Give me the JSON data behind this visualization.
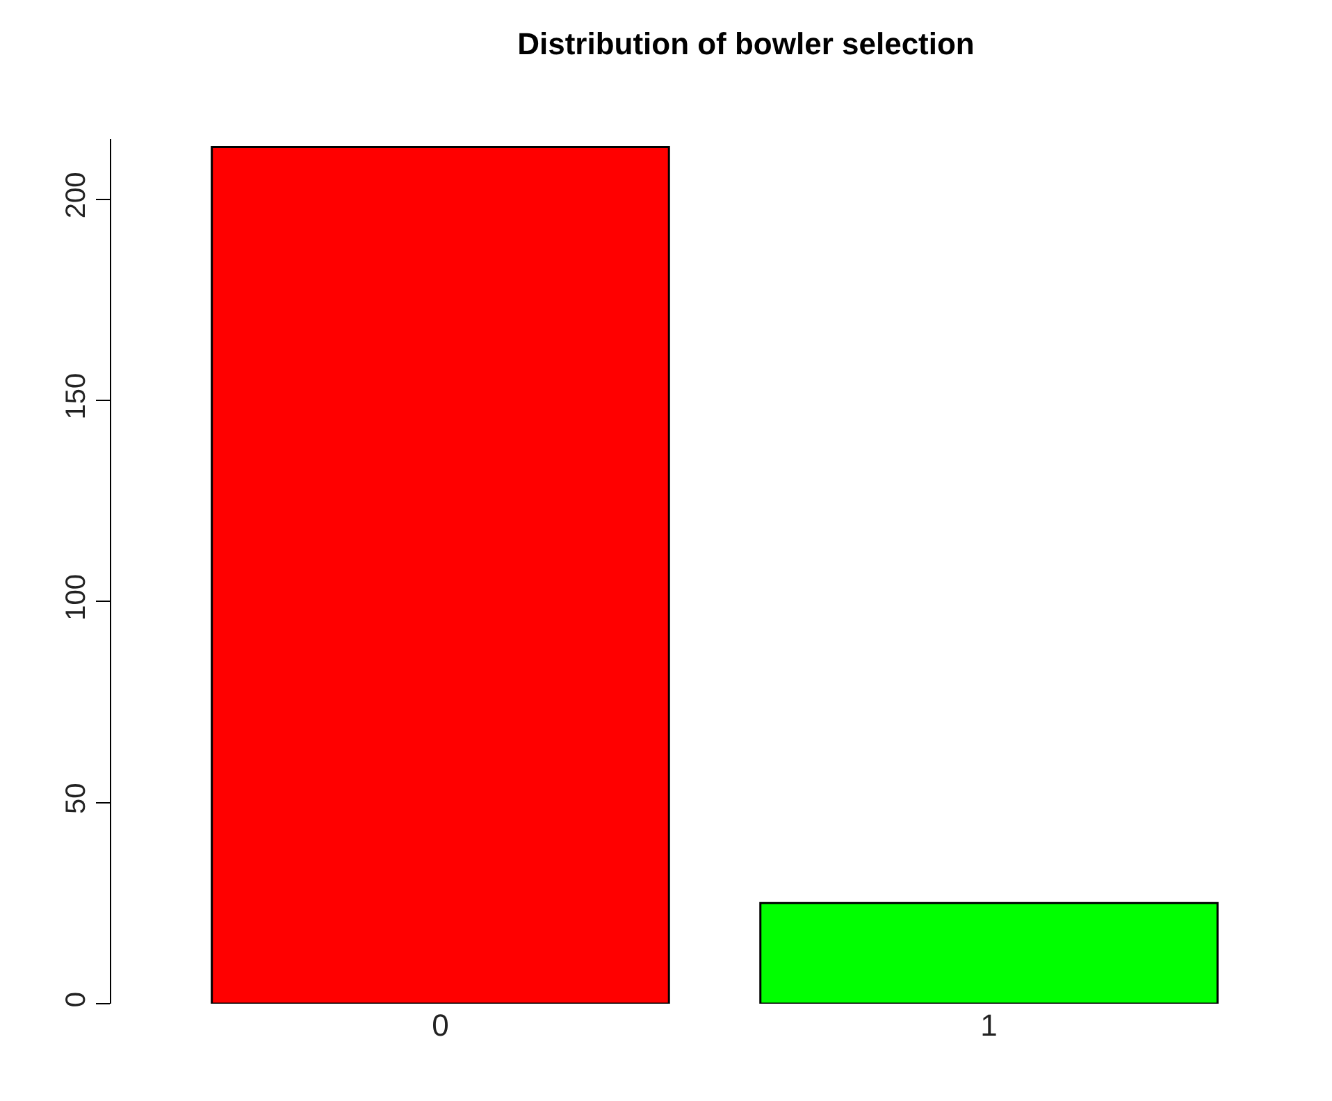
{
  "chart_data": {
    "type": "bar",
    "title": "Distribution of bowler selection",
    "categories": [
      "0",
      "1"
    ],
    "values": [
      213,
      25
    ],
    "colors": [
      "#ff0000",
      "#00ff00"
    ],
    "ylim": [
      0,
      215
    ],
    "yticks": [
      0,
      50,
      100,
      150,
      200
    ]
  }
}
